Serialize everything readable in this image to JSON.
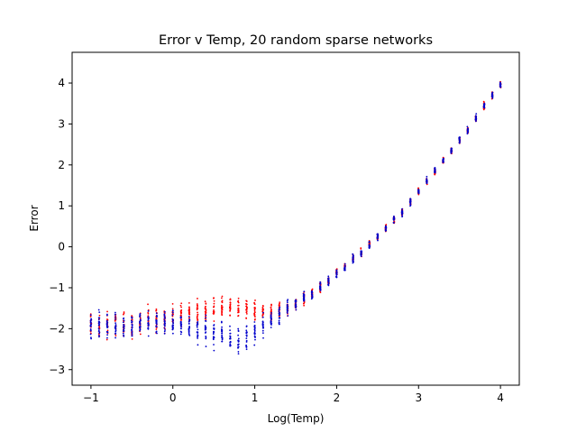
{
  "chart_data": {
    "type": "scatter",
    "title": "Error v Temp, 20 random sparse networks",
    "xlabel": "Log(Temp)",
    "ylabel": "Error",
    "xlim": [
      -1.23,
      4.23
    ],
    "ylim": [
      -3.38,
      4.75
    ],
    "xticks": [
      -1,
      0,
      1,
      2,
      3,
      4
    ],
    "yticks": [
      -3,
      -2,
      -1,
      0,
      1,
      2,
      3,
      4
    ],
    "grid": false,
    "legend": "none",
    "x_step": 0.1,
    "points_per_x": 20,
    "series": [
      {
        "color": "#ff0000",
        "points_per_x": 20,
        "mean_by_x": [
          [
            -1.0,
            -1.9
          ],
          [
            -0.9,
            -1.95
          ],
          [
            -0.8,
            -1.9
          ],
          [
            -0.7,
            -1.85
          ],
          [
            -0.6,
            -1.9
          ],
          [
            -0.5,
            -1.95
          ],
          [
            -0.4,
            -1.85
          ],
          [
            -0.3,
            -1.8
          ],
          [
            -0.2,
            -1.8
          ],
          [
            -0.1,
            -1.75
          ],
          [
            0.0,
            -1.7
          ],
          [
            0.1,
            -1.65
          ],
          [
            0.2,
            -1.6
          ],
          [
            0.3,
            -1.6
          ],
          [
            0.4,
            -1.55
          ],
          [
            0.5,
            -1.5
          ],
          [
            0.6,
            -1.5
          ],
          [
            0.7,
            -1.5
          ],
          [
            0.8,
            -1.5
          ],
          [
            0.9,
            -1.5
          ],
          [
            1.0,
            -1.55
          ],
          [
            1.1,
            -1.6
          ],
          [
            1.2,
            -1.6
          ],
          [
            1.3,
            -1.55
          ],
          [
            1.4,
            -1.5
          ],
          [
            1.5,
            -1.4
          ],
          [
            1.6,
            -1.25
          ],
          [
            1.7,
            -1.15
          ],
          [
            1.8,
            -1.0
          ],
          [
            1.9,
            -0.85
          ],
          [
            2.0,
            -0.65
          ],
          [
            2.1,
            -0.5
          ],
          [
            2.2,
            -0.3
          ],
          [
            2.3,
            -0.15
          ],
          [
            2.4,
            0.05
          ],
          [
            2.5,
            0.25
          ],
          [
            2.6,
            0.45
          ],
          [
            2.7,
            0.65
          ],
          [
            2.8,
            0.85
          ],
          [
            2.9,
            1.1
          ],
          [
            3.0,
            1.35
          ],
          [
            3.1,
            1.6
          ],
          [
            3.2,
            1.85
          ],
          [
            3.3,
            2.1
          ],
          [
            3.4,
            2.35
          ],
          [
            3.5,
            2.6
          ],
          [
            3.6,
            2.85
          ],
          [
            3.7,
            3.15
          ],
          [
            3.8,
            3.45
          ],
          [
            3.9,
            3.7
          ],
          [
            4.0,
            3.95
          ]
        ],
        "spread_by_x": [
          [
            -1.0,
            0.5
          ],
          [
            0.0,
            0.4
          ],
          [
            1.0,
            0.35
          ],
          [
            1.5,
            0.25
          ],
          [
            2.0,
            0.15
          ],
          [
            3.0,
            0.12
          ],
          [
            4.0,
            0.12
          ]
        ]
      },
      {
        "color": "#0000cc",
        "points_per_x": 20,
        "mean_by_x": [
          [
            -1.0,
            -1.9
          ],
          [
            -0.9,
            -1.95
          ],
          [
            -0.8,
            -1.9
          ],
          [
            -0.7,
            -1.9
          ],
          [
            -0.6,
            -1.95
          ],
          [
            -0.5,
            -1.95
          ],
          [
            -0.4,
            -1.9
          ],
          [
            -0.3,
            -1.85
          ],
          [
            -0.2,
            -1.85
          ],
          [
            -0.1,
            -1.85
          ],
          [
            0.0,
            -1.85
          ],
          [
            0.1,
            -1.9
          ],
          [
            0.2,
            -1.95
          ],
          [
            0.3,
            -2.0
          ],
          [
            0.4,
            -2.05
          ],
          [
            0.5,
            -2.1
          ],
          [
            0.6,
            -2.15
          ],
          [
            0.7,
            -2.2
          ],
          [
            0.8,
            -2.25
          ],
          [
            0.9,
            -2.2
          ],
          [
            1.0,
            -2.1
          ],
          [
            1.1,
            -1.95
          ],
          [
            1.2,
            -1.8
          ],
          [
            1.3,
            -1.65
          ],
          [
            1.4,
            -1.5
          ],
          [
            1.5,
            -1.4
          ],
          [
            1.6,
            -1.25
          ],
          [
            1.7,
            -1.15
          ],
          [
            1.8,
            -1.0
          ],
          [
            1.9,
            -0.85
          ],
          [
            2.0,
            -0.65
          ],
          [
            2.1,
            -0.5
          ],
          [
            2.2,
            -0.3
          ],
          [
            2.3,
            -0.15
          ],
          [
            2.4,
            0.05
          ],
          [
            2.5,
            0.25
          ],
          [
            2.6,
            0.45
          ],
          [
            2.7,
            0.65
          ],
          [
            2.8,
            0.85
          ],
          [
            2.9,
            1.1
          ],
          [
            3.0,
            1.35
          ],
          [
            3.1,
            1.6
          ],
          [
            3.2,
            1.85
          ],
          [
            3.3,
            2.1
          ],
          [
            3.4,
            2.35
          ],
          [
            3.5,
            2.6
          ],
          [
            3.6,
            2.85
          ],
          [
            3.7,
            3.15
          ],
          [
            3.8,
            3.45
          ],
          [
            3.9,
            3.7
          ],
          [
            4.0,
            3.95
          ]
        ],
        "spread_by_x": [
          [
            -1.0,
            0.5
          ],
          [
            0.0,
            0.45
          ],
          [
            0.7,
            0.5
          ],
          [
            1.0,
            0.4
          ],
          [
            1.5,
            0.25
          ],
          [
            2.0,
            0.15
          ],
          [
            3.0,
            0.12
          ],
          [
            4.0,
            0.12
          ]
        ]
      }
    ]
  }
}
